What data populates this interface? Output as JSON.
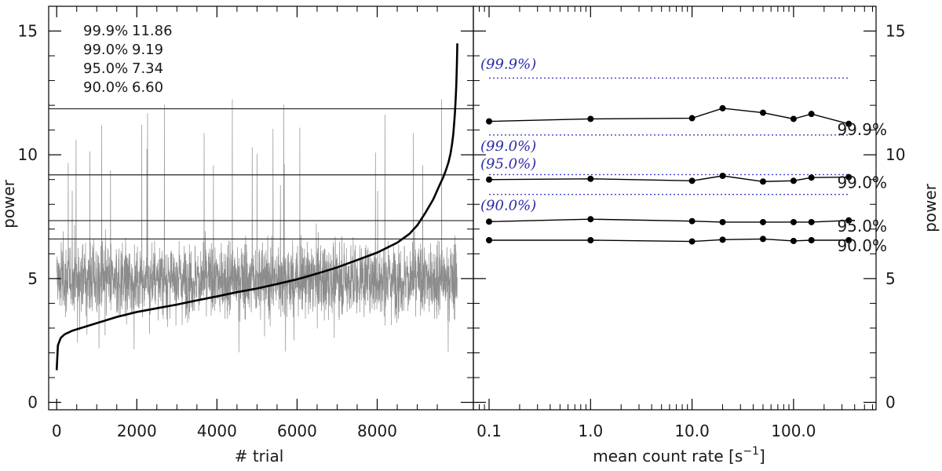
{
  "chart_data": [
    {
      "type": "line",
      "panel": "left",
      "xlabel": "# trial",
      "ylabel": "power",
      "xlim": [
        -200,
        10400
      ],
      "ylim": [
        -0.3,
        16
      ],
      "x_ticks": [
        0,
        2000,
        4000,
        6000,
        8000
      ],
      "x_tick_labels": [
        "0",
        "2000",
        "4000",
        "6000",
        "8000"
      ],
      "y_ticks": [
        0,
        5,
        10,
        15
      ],
      "y_tick_labels": [
        "0",
        "5",
        "10",
        "15"
      ],
      "n_trials": 10000,
      "annotations": [
        {
          "level": "99.9%",
          "power": "11.86"
        },
        {
          "level": "99.0%",
          "power": "9.19"
        },
        {
          "level": "95.0%",
          "power": "7.34"
        },
        {
          "level": "90.0%",
          "power": "6.60"
        }
      ],
      "thresholds": [
        11.86,
        9.19,
        7.34,
        6.6
      ],
      "sorted_curve": {
        "x": [
          0,
          30,
          100,
          200,
          400,
          700,
          1000,
          1500,
          2000,
          2500,
          3000,
          3500,
          4000,
          4500,
          5000,
          5500,
          6000,
          6500,
          7000,
          7500,
          8000,
          8500,
          8800,
          9000,
          9200,
          9400,
          9550,
          9650,
          9720,
          9780,
          9830,
          9870,
          9900,
          9920,
          9940,
          9960,
          9975,
          9990,
          10000
        ],
        "y": [
          1.3,
          2.3,
          2.6,
          2.75,
          2.9,
          3.05,
          3.2,
          3.45,
          3.65,
          3.8,
          3.95,
          4.12,
          4.28,
          4.45,
          4.6,
          4.78,
          4.97,
          5.2,
          5.45,
          5.75,
          6.05,
          6.45,
          6.8,
          7.15,
          7.65,
          8.2,
          8.75,
          9.1,
          9.4,
          9.7,
          10.05,
          10.45,
          10.85,
          11.25,
          11.7,
          12.3,
          12.85,
          13.7,
          14.5
        ]
      },
      "noise_color": "#8c8c8c"
    },
    {
      "type": "line",
      "panel": "right",
      "xscale": "log",
      "xlabel_text": "mean count rate [s",
      "xlabel_sup": "−1",
      "xlabel_close": "]",
      "ylabel": "power",
      "xlim": [
        0.07,
        650
      ],
      "ylim": [
        -0.3,
        16
      ],
      "x_ticks": [
        0.1,
        1.0,
        10.0,
        100.0
      ],
      "x_tick_labels": [
        "0.1",
        "1.0",
        "10.0",
        "100.0"
      ],
      "y_ticks": [
        0,
        5,
        10,
        15
      ],
      "y_tick_labels": [
        "0",
        "5",
        "10",
        "15"
      ],
      "x": [
        0.1,
        1.0,
        10.0,
        20.0,
        50.0,
        100.0,
        150.0,
        350.0
      ],
      "series": [
        {
          "name": "99.9%",
          "values": [
            11.35,
            11.45,
            11.48,
            11.88,
            11.7,
            11.45,
            11.65,
            11.25
          ]
        },
        {
          "name": "99.0%",
          "values": [
            9.0,
            9.03,
            8.95,
            9.15,
            8.92,
            8.95,
            9.08,
            9.1
          ]
        },
        {
          "name": "95.0%",
          "values": [
            7.3,
            7.4,
            7.32,
            7.28,
            7.28,
            7.28,
            7.28,
            7.35
          ]
        },
        {
          "name": "90.0%",
          "values": [
            6.55,
            6.55,
            6.5,
            6.57,
            6.6,
            6.52,
            6.55,
            6.55
          ]
        }
      ],
      "expected_levels": [
        {
          "label": "(99.9%)",
          "value": 13.1
        },
        {
          "label": "(99.0%)",
          "value": 10.8
        },
        {
          "label": "(95.0%)",
          "value": 9.2
        },
        {
          "label": "(90.0%)",
          "value": 8.4
        }
      ],
      "expected_color": "#3a3ac8"
    }
  ]
}
